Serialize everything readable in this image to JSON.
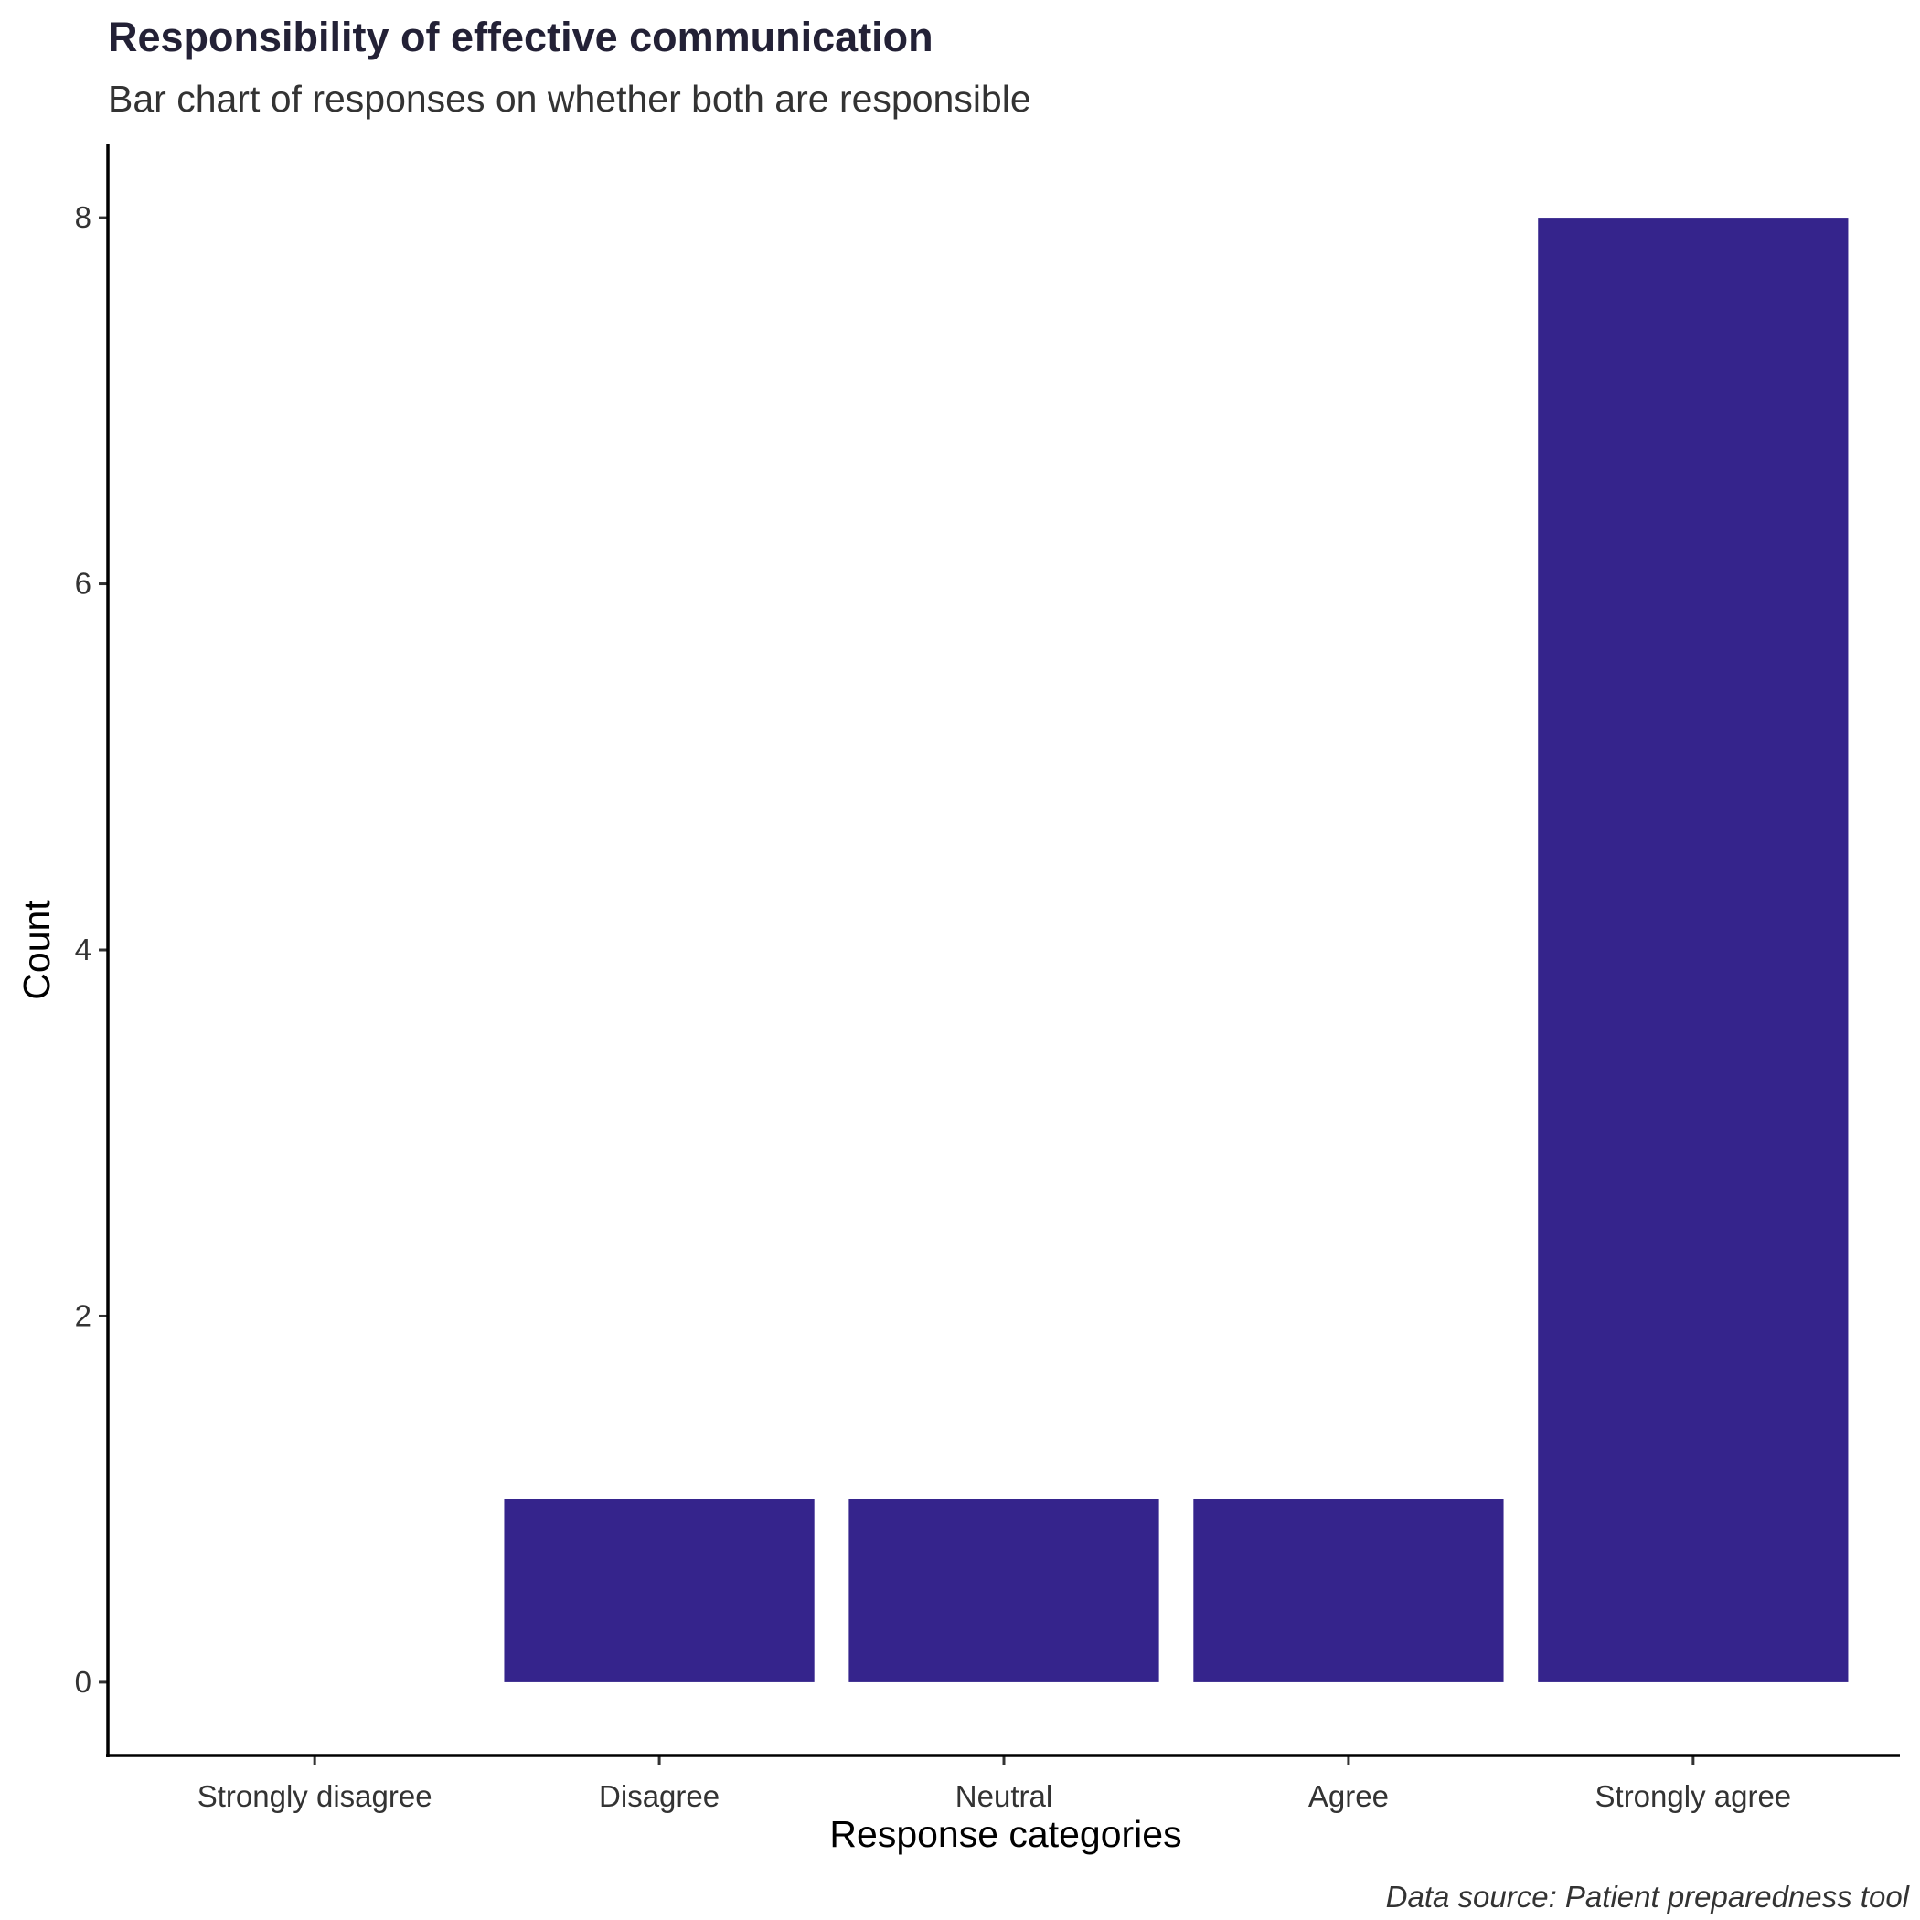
{
  "chart_data": {
    "type": "bar",
    "title": "Responsibility of effective communication",
    "subtitle": "Bar chart of responses on whether both are responsible",
    "caption": "Data source: Patient preparedness tool",
    "xlabel": "Response categories",
    "ylabel": "Count",
    "categories": [
      "Strongly disagree",
      "Disagree",
      "Neutral",
      "Agree",
      "Strongly agree"
    ],
    "values": [
      0,
      1,
      1,
      1,
      8
    ],
    "ylim": [
      -0.4,
      8.4
    ],
    "yticks": [
      0,
      2,
      4,
      6,
      8
    ],
    "grid": false,
    "legend": "none",
    "bar_color": "#35248C"
  }
}
